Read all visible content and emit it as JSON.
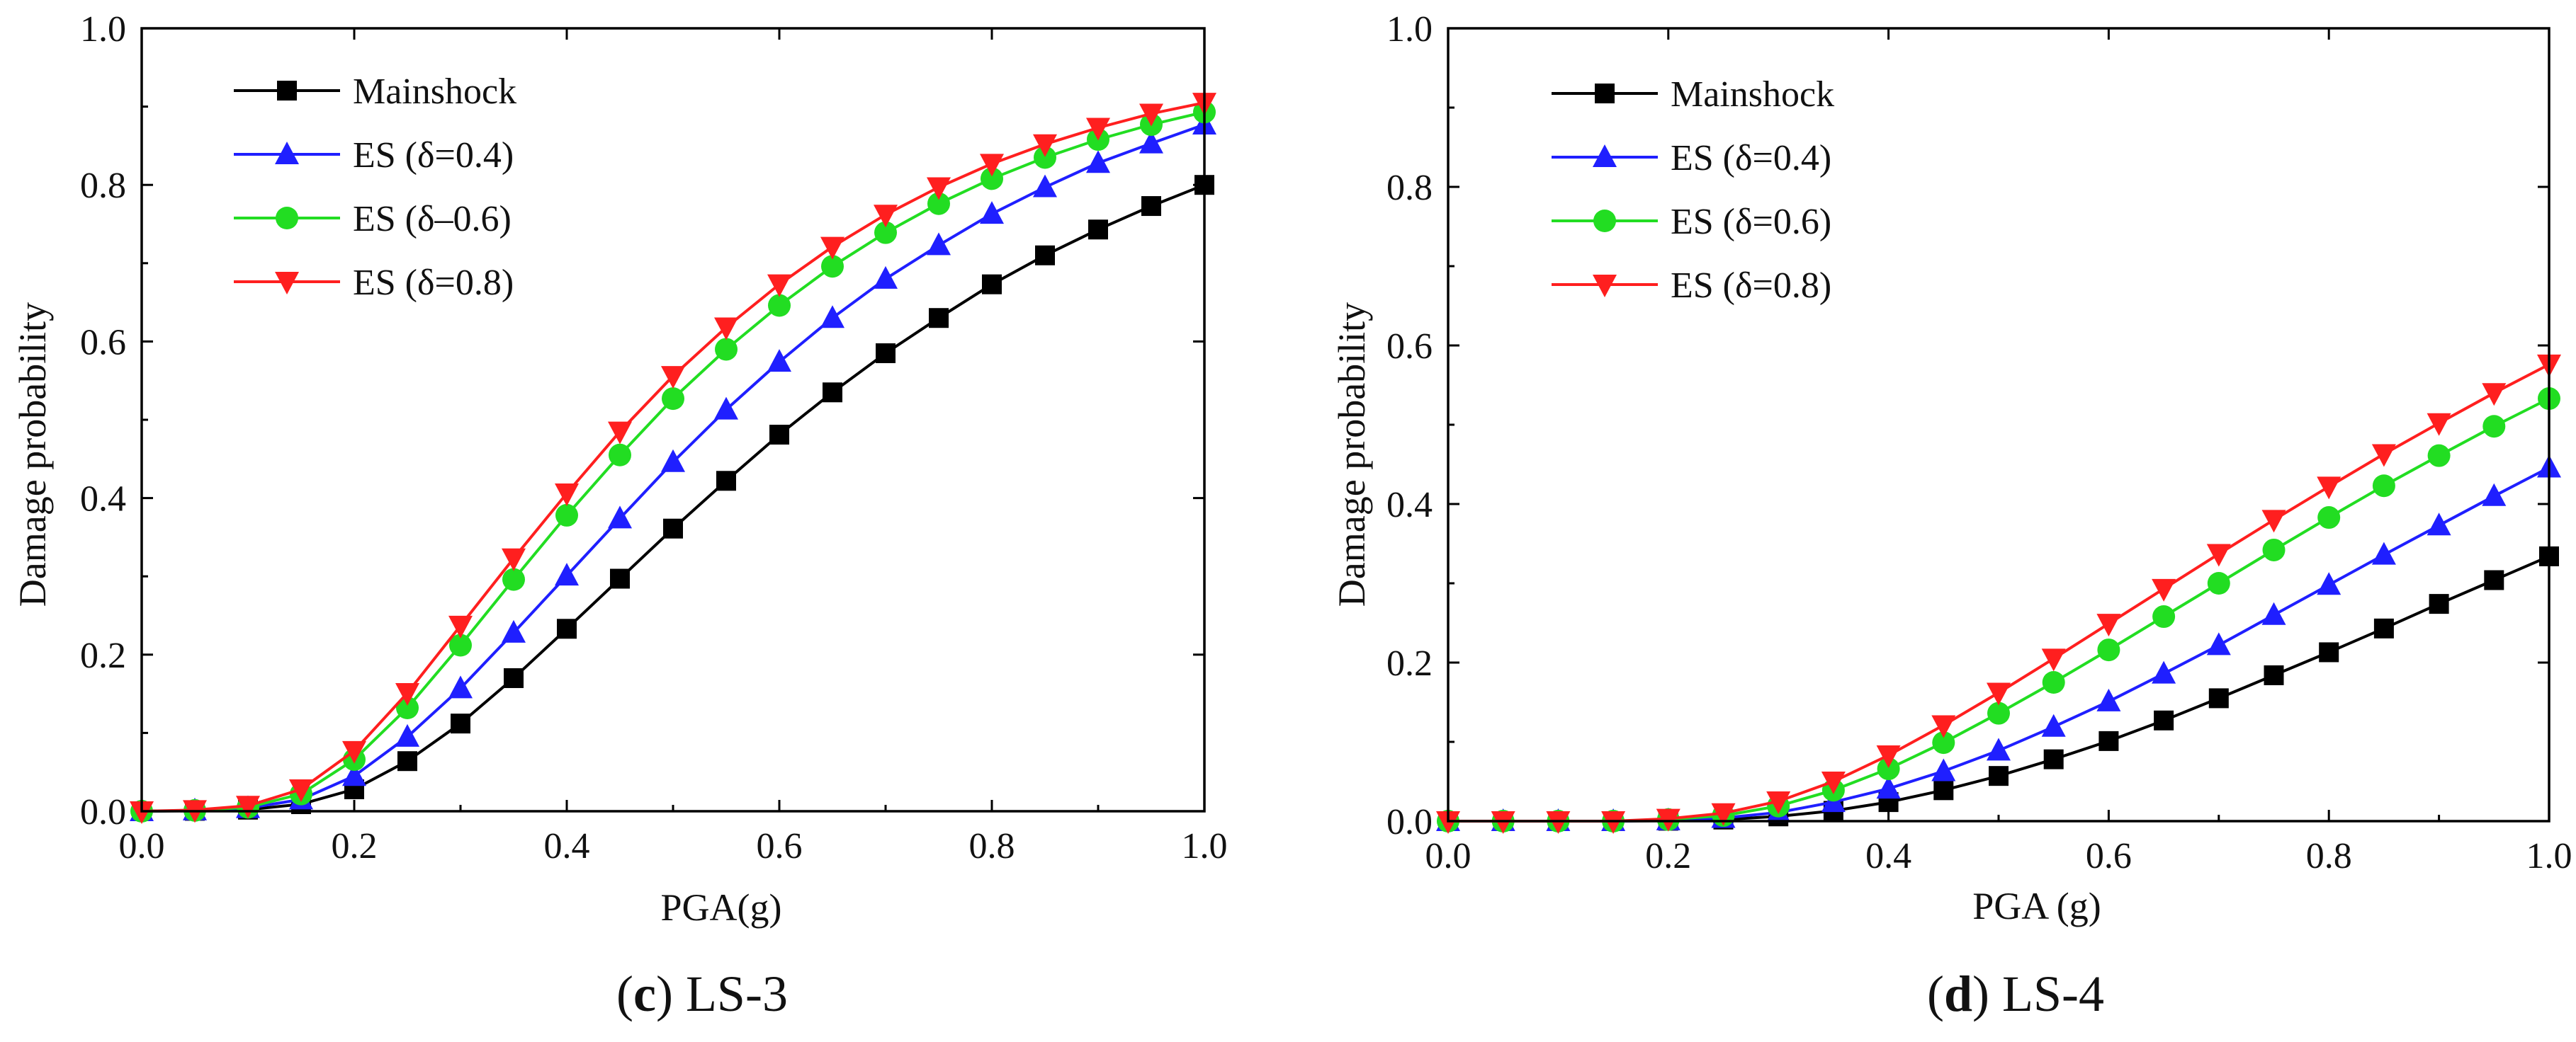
{
  "chart_data": [
    {
      "type": "line",
      "title": "",
      "caption_letter": "c",
      "caption_text": " LS-3",
      "xlabel": "PGA(g)",
      "ylabel": "Damage probability",
      "xlim": [
        0,
        1.0
      ],
      "ylim": [
        0,
        1.0
      ],
      "xticks": [
        "0.0",
        "0.2",
        "0.4",
        "0.6",
        "0.8",
        "1.0"
      ],
      "yticks": [
        "0.0",
        "0.2",
        "0.4",
        "0.6",
        "0.8",
        "1.0"
      ],
      "legend_position": "top-left",
      "x": [
        0,
        0.05,
        0.1,
        0.15,
        0.2,
        0.25,
        0.3,
        0.35,
        0.4,
        0.45,
        0.5,
        0.55,
        0.6,
        0.65,
        0.7,
        0.75,
        0.8,
        0.85,
        0.9,
        0.95,
        1.0
      ],
      "series": [
        {
          "name": "Mainshock",
          "color": "#000000",
          "marker": "square",
          "values": [
            0,
            0.0005,
            0.002,
            0.009,
            0.028,
            0.064,
            0.112,
            0.17,
            0.233,
            0.297,
            0.361,
            0.422,
            0.481,
            0.535,
            0.585,
            0.63,
            0.673,
            0.71,
            0.743,
            0.773,
            0.8
          ]
        },
        {
          "name": "ES (δ=0.4)",
          "color": "#1f1fff",
          "marker": "triangle-up",
          "values": [
            0,
            0.001,
            0.004,
            0.015,
            0.045,
            0.095,
            0.157,
            0.228,
            0.301,
            0.374,
            0.446,
            0.513,
            0.574,
            0.63,
            0.68,
            0.723,
            0.763,
            0.797,
            0.828,
            0.853,
            0.877
          ]
        },
        {
          "name": "ES (δ–0.6)",
          "color": "#22dd22",
          "marker": "circle",
          "values": [
            0,
            0.001,
            0.005,
            0.022,
            0.066,
            0.132,
            0.212,
            0.296,
            0.378,
            0.455,
            0.527,
            0.59,
            0.646,
            0.696,
            0.739,
            0.776,
            0.808,
            0.835,
            0.858,
            0.877,
            0.893
          ]
        },
        {
          "name": "ES (δ=0.8)",
          "color": "#ff1f1f",
          "marker": "triangle-down",
          "values": [
            0,
            0.0015,
            0.007,
            0.028,
            0.077,
            0.151,
            0.237,
            0.323,
            0.406,
            0.485,
            0.556,
            0.618,
            0.673,
            0.721,
            0.762,
            0.797,
            0.827,
            0.852,
            0.873,
            0.891,
            0.905
          ]
        }
      ]
    },
    {
      "type": "line",
      "title": "",
      "caption_letter": "d",
      "caption_text": " LS-4",
      "xlabel": "PGA (g)",
      "ylabel": "Damage probability",
      "xlim": [
        0,
        1.0
      ],
      "ylim": [
        0,
        1.0
      ],
      "xticks": [
        "0.0",
        "0.2",
        "0.4",
        "0.6",
        "0.8",
        "1.0"
      ],
      "yticks": [
        "0.0",
        "0.2",
        "0.4",
        "0.6",
        "0.8",
        "1.0"
      ],
      "legend_position": "top-left",
      "x": [
        0,
        0.05,
        0.1,
        0.15,
        0.2,
        0.25,
        0.3,
        0.35,
        0.4,
        0.45,
        0.5,
        0.55,
        0.6,
        0.65,
        0.7,
        0.75,
        0.8,
        0.85,
        0.9,
        0.95,
        1.0
      ],
      "series": [
        {
          "name": "Mainshock",
          "color": "#000000",
          "marker": "square",
          "values": [
            0,
            0,
            0,
            0,
            0.0005,
            0.002,
            0.006,
            0.013,
            0.024,
            0.039,
            0.057,
            0.078,
            0.101,
            0.127,
            0.155,
            0.184,
            0.213,
            0.243,
            0.274,
            0.304,
            0.334
          ]
        },
        {
          "name": "ES (δ=0.4)",
          "color": "#1f1fff",
          "marker": "triangle-up",
          "values": [
            0,
            0,
            0,
            0,
            0.001,
            0.004,
            0.011,
            0.024,
            0.041,
            0.063,
            0.089,
            0.119,
            0.151,
            0.186,
            0.222,
            0.26,
            0.298,
            0.336,
            0.373,
            0.41,
            0.446
          ]
        },
        {
          "name": "ES (δ=0.6)",
          "color": "#22dd22",
          "marker": "circle",
          "values": [
            0,
            0,
            0,
            0,
            0.002,
            0.007,
            0.019,
            0.039,
            0.066,
            0.099,
            0.136,
            0.175,
            0.216,
            0.258,
            0.3,
            0.342,
            0.383,
            0.423,
            0.461,
            0.498,
            0.533
          ]
        },
        {
          "name": "ES (δ=0.8)",
          "color": "#ff1f1f",
          "marker": "triangle-down",
          "values": [
            0,
            0,
            0,
            0,
            0.003,
            0.01,
            0.025,
            0.05,
            0.083,
            0.121,
            0.162,
            0.205,
            0.249,
            0.293,
            0.337,
            0.38,
            0.422,
            0.463,
            0.502,
            0.54,
            0.576
          ]
        }
      ]
    }
  ]
}
